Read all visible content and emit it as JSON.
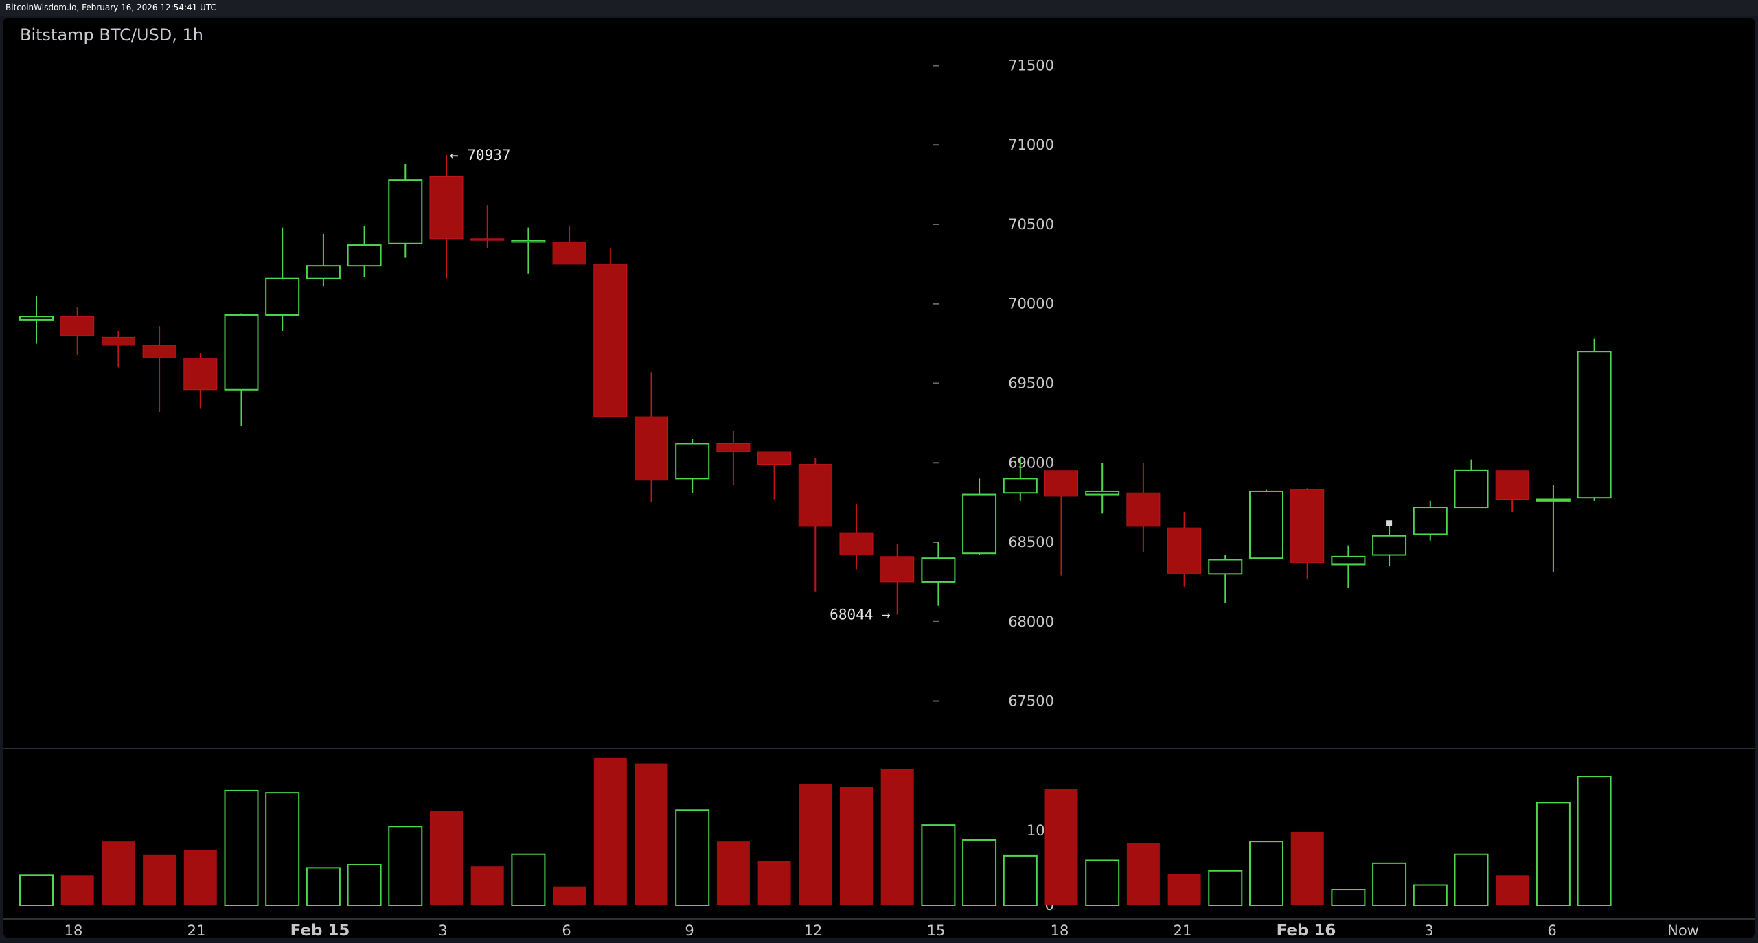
{
  "header": {
    "source_text": "BitcoinWisdom.io, February 16, 2026 12:54:41 UTC"
  },
  "chart_data": {
    "type": "candlestick",
    "title": "Bitstamp BTC/USD, 1h",
    "colors": {
      "up": "#4fd64f",
      "down": "#a50e0e",
      "wick_down": "#c0161a",
      "axis_text": "#c8c8c8",
      "background": "#000000"
    },
    "price_axis": {
      "ylim": [
        67200,
        71800
      ],
      "ticks": [
        71500,
        71000,
        70500,
        70000,
        69500,
        69000,
        68500,
        68000,
        67500
      ]
    },
    "volume_axis": {
      "ylim": [
        0,
        195
      ],
      "ticks": [
        100,
        0
      ]
    },
    "x_ticks": [
      "18",
      "21",
      "Feb 15",
      "3",
      "6",
      "9",
      "12",
      "15",
      "18",
      "21",
      "Feb 16",
      "3",
      "6",
      "Now"
    ],
    "x_ticks_bold": [
      "Feb 15",
      "Feb 16"
    ],
    "annotations": {
      "high": {
        "value": 70937,
        "text": "← 70937",
        "candle": 10
      },
      "low": {
        "value": 68044,
        "text": "68044 →",
        "candle": 21
      }
    },
    "candles": [
      {
        "o": 69900,
        "h": 70050,
        "l": 69750,
        "c": 69920,
        "v": 40
      },
      {
        "o": 69920,
        "h": 69980,
        "l": 69680,
        "c": 69800,
        "v": 40
      },
      {
        "o": 69790,
        "h": 69830,
        "l": 69600,
        "c": 69740,
        "v": 85
      },
      {
        "o": 69740,
        "h": 69860,
        "l": 69320,
        "c": 69660,
        "v": 67
      },
      {
        "o": 69660,
        "h": 69690,
        "l": 69340,
        "c": 69460,
        "v": 74
      },
      {
        "o": 69460,
        "h": 69940,
        "l": 69230,
        "c": 69930,
        "v": 153
      },
      {
        "o": 69930,
        "h": 70480,
        "l": 69830,
        "c": 70160,
        "v": 150
      },
      {
        "o": 70160,
        "h": 70440,
        "l": 70110,
        "c": 70240,
        "v": 50
      },
      {
        "o": 70240,
        "h": 70490,
        "l": 70170,
        "c": 70370,
        "v": 54
      },
      {
        "o": 70380,
        "h": 70880,
        "l": 70290,
        "c": 70780,
        "v": 105
      },
      {
        "o": 70800,
        "h": 70937,
        "l": 70160,
        "c": 70410,
        "v": 126
      },
      {
        "o": 70410,
        "h": 70620,
        "l": 70350,
        "c": 70400,
        "v": 52
      },
      {
        "o": 70390,
        "h": 70480,
        "l": 70190,
        "c": 70400,
        "v": 68
      },
      {
        "o": 70390,
        "h": 70490,
        "l": 70250,
        "c": 70250,
        "v": 25
      },
      {
        "o": 70250,
        "h": 70350,
        "l": 69290,
        "c": 69290,
        "v": 197
      },
      {
        "o": 69290,
        "h": 69570,
        "l": 68750,
        "c": 68890,
        "v": 189
      },
      {
        "o": 68900,
        "h": 69150,
        "l": 68810,
        "c": 69120,
        "v": 127
      },
      {
        "o": 69120,
        "h": 69200,
        "l": 68860,
        "c": 69070,
        "v": 85
      },
      {
        "o": 69070,
        "h": 69060,
        "l": 68770,
        "c": 68990,
        "v": 59
      },
      {
        "o": 68990,
        "h": 69030,
        "l": 68190,
        "c": 68600,
        "v": 162
      },
      {
        "o": 68560,
        "h": 68740,
        "l": 68330,
        "c": 68420,
        "v": 158
      },
      {
        "o": 68410,
        "h": 68490,
        "l": 68044,
        "c": 68250,
        "v": 182
      },
      {
        "o": 68250,
        "h": 68500,
        "l": 68100,
        "c": 68400,
        "v": 107
      },
      {
        "o": 68430,
        "h": 68900,
        "l": 68420,
        "c": 68800,
        "v": 87
      },
      {
        "o": 68810,
        "h": 69030,
        "l": 68760,
        "c": 68900,
        "v": 66
      },
      {
        "o": 68950,
        "h": 68940,
        "l": 68290,
        "c": 68790,
        "v": 155
      },
      {
        "o": 68800,
        "h": 69000,
        "l": 68680,
        "c": 68820,
        "v": 60
      },
      {
        "o": 68810,
        "h": 69000,
        "l": 68440,
        "c": 68600,
        "v": 83
      },
      {
        "o": 68590,
        "h": 68690,
        "l": 68220,
        "c": 68300,
        "v": 42
      },
      {
        "o": 68300,
        "h": 68420,
        "l": 68120,
        "c": 68390,
        "v": 46
      },
      {
        "o": 68400,
        "h": 68830,
        "l": 68400,
        "c": 68820,
        "v": 85
      },
      {
        "o": 68830,
        "h": 68840,
        "l": 68270,
        "c": 68370,
        "v": 98
      },
      {
        "o": 68360,
        "h": 68480,
        "l": 68210,
        "c": 68410,
        "v": 21
      },
      {
        "o": 68420,
        "h": 68620,
        "l": 68350,
        "c": 68540,
        "v": 56
      },
      {
        "o": 68550,
        "h": 68760,
        "l": 68510,
        "c": 68720,
        "v": 27
      },
      {
        "o": 68720,
        "h": 69020,
        "l": 68720,
        "c": 68950,
        "v": 68
      },
      {
        "o": 68950,
        "h": 68950,
        "l": 68690,
        "c": 68770,
        "v": 40
      },
      {
        "o": 68760,
        "h": 68860,
        "l": 68310,
        "c": 68770,
        "v": 137
      },
      {
        "o": 68780,
        "h": 69780,
        "l": 68760,
        "c": 69700,
        "v": 172
      }
    ]
  }
}
